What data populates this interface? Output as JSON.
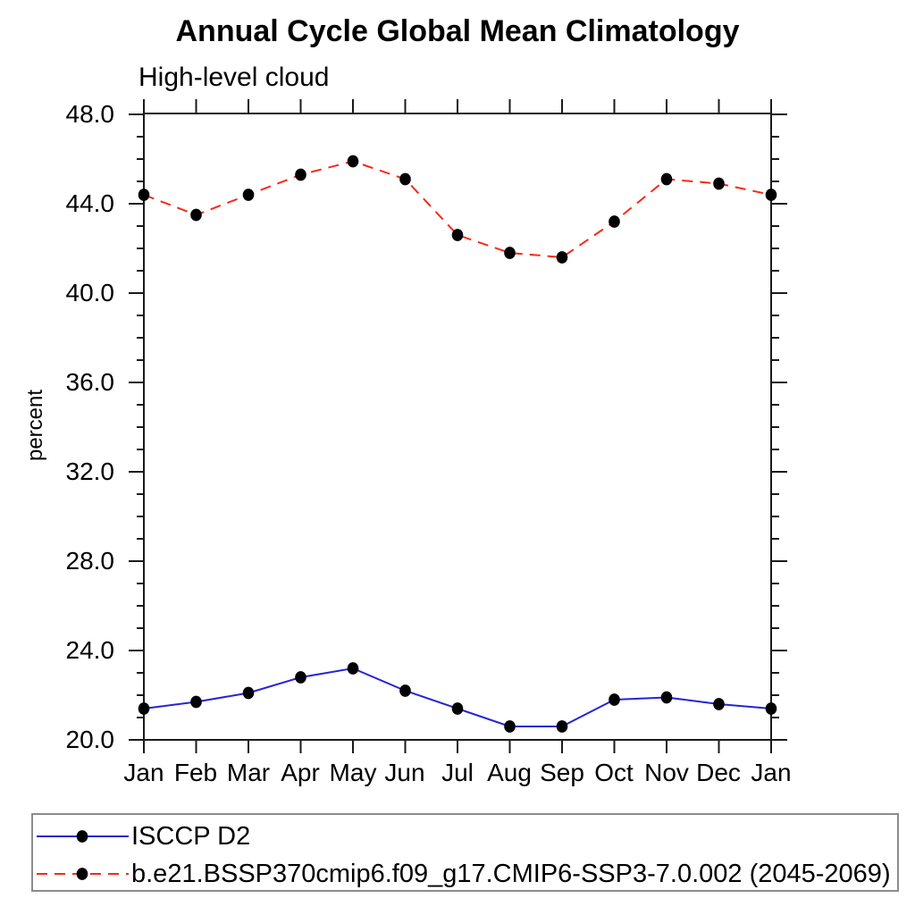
{
  "header": {
    "title": "Annual Cycle Global Mean Climatology",
    "subtitle": "High-level cloud"
  },
  "chart_data": {
    "type": "line",
    "title": "Annual Cycle Global Mean Climatology",
    "subtitle": "High-level cloud",
    "xlabel": "",
    "ylabel": "percent",
    "categories": [
      "Jan",
      "Feb",
      "Mar",
      "Apr",
      "May",
      "Jun",
      "Jul",
      "Aug",
      "Sep",
      "Oct",
      "Nov",
      "Dec",
      "Jan"
    ],
    "ylim": [
      20.0,
      48.0
    ],
    "y_major_ticks": [
      20.0,
      24.0,
      28.0,
      32.0,
      36.0,
      40.0,
      44.0,
      48.0
    ],
    "y_tick_labels": [
      "48.0",
      "44.0",
      "40.0",
      "36.0",
      "32.0",
      "28.0",
      "24.0",
      "20.0"
    ],
    "y_minor_tick_step": 1.0,
    "grid": false,
    "legend_position": "bottom-left-box",
    "series": [
      {
        "name": "ISCCP D2",
        "color": "#2525d5",
        "style": "solid",
        "marker": "filled-circle",
        "marker_color": "#000000",
        "values": [
          21.4,
          21.7,
          22.1,
          22.8,
          23.2,
          22.2,
          21.4,
          20.6,
          20.6,
          21.8,
          21.9,
          21.6,
          21.4
        ]
      },
      {
        "name": "b.e21.BSSP370cmip6.f09_g17.CMIP6-SSP3-7.0.002 (2045-2069)",
        "color": "#f52a1c",
        "style": "dashed",
        "marker": "filled-circle",
        "marker_color": "#000000",
        "values": [
          44.4,
          43.5,
          44.4,
          45.3,
          45.9,
          45.1,
          42.6,
          41.8,
          41.6,
          43.2,
          45.1,
          44.9,
          44.4
        ]
      }
    ]
  },
  "colors": {
    "axis": "#1a1a1a",
    "text": "#000000",
    "legend_border": "#8c8c8c",
    "marker": "#000000"
  }
}
